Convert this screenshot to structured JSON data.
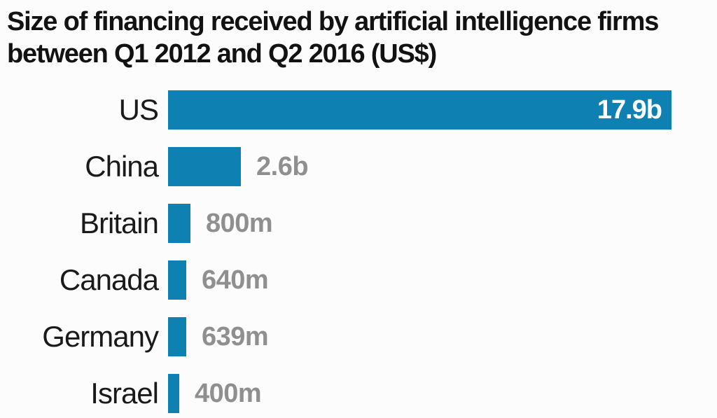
{
  "chart_data": {
    "type": "bar",
    "orientation": "horizontal",
    "title": "Size of financing received by artificial intelligence firms between Q1 2012 and Q2 2016 (US$)",
    "unit": "US$",
    "categories": [
      "US",
      "China",
      "Britain",
      "Canada",
      "Germany",
      "Israel"
    ],
    "values_billions_usd": [
      17.9,
      2.6,
      0.8,
      0.64,
      0.639,
      0.4
    ],
    "value_labels": [
      "17.9b",
      "2.6b",
      "800m",
      "640m",
      "639m",
      "400m"
    ],
    "value_label_inside_bar": [
      true,
      false,
      false,
      false,
      false,
      false
    ],
    "xlim_billions": [
      0,
      17.9
    ],
    "grid": false,
    "legend": false,
    "colors": {
      "bar": "#0f80b2",
      "title_text": "#121212",
      "category_label_text": "#1a1a1a",
      "value_label_outside": "#8f8f8f",
      "value_label_inside": "#ffffff",
      "background": "#fcfcfc"
    }
  }
}
